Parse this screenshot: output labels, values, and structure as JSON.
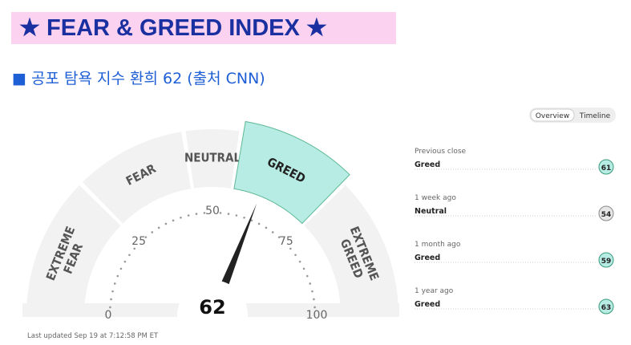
{
  "header": {
    "title": "★ FEAR & GREED INDEX ★",
    "subtitle": "■ 공포 탐욕 지수 환희 62 (출처 CNN)"
  },
  "gauge": {
    "value": 62,
    "min": 0,
    "max": 100,
    "ticks": [
      0,
      25,
      50,
      75,
      100
    ],
    "segments": [
      {
        "label": [
          "EXTREME",
          "FEAR"
        ],
        "from": 0,
        "to": 25,
        "color": "#f2f2f2"
      },
      {
        "label": [
          "FEAR"
        ],
        "from": 25,
        "to": 45,
        "color": "#f2f2f2"
      },
      {
        "label": [
          "NEUTRAL"
        ],
        "from": 45,
        "to": 55,
        "color": "#f2f2f2"
      },
      {
        "label": [
          "GREED"
        ],
        "from": 55,
        "to": 75,
        "color": "#b6ece3"
      },
      {
        "label": [
          "EXTREME",
          "GREED"
        ],
        "from": 75,
        "to": 100,
        "color": "#f2f2f2"
      }
    ]
  },
  "tabs": [
    "Overview",
    "Timeline"
  ],
  "history": [
    {
      "label": "Previous close",
      "rating": "Greed",
      "value": 61,
      "color": "#b6ece3"
    },
    {
      "label": "1 week ago",
      "rating": "Neutral",
      "value": 54,
      "color": "#e6e6e6"
    },
    {
      "label": "1 month ago",
      "rating": "Greed",
      "value": 59,
      "color": "#b6ece3"
    },
    {
      "label": "1 year ago",
      "rating": "Greed",
      "value": 63,
      "color": "#b6ece3"
    }
  ],
  "footer": "Last updated Sep 19 at 7:12:58 PM ET"
}
